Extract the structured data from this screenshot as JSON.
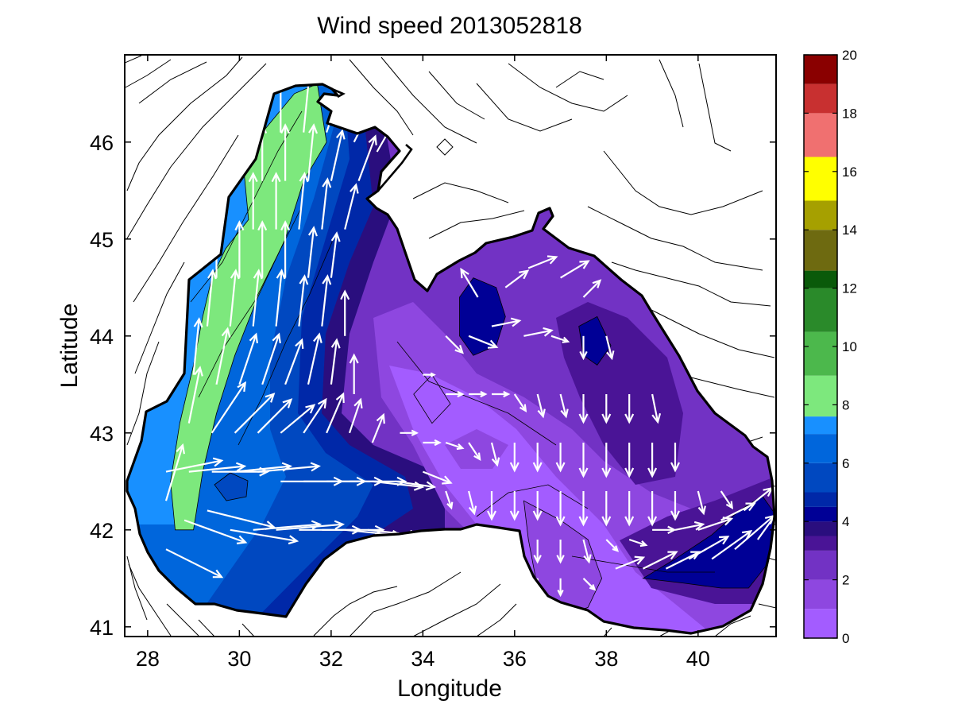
{
  "chart_data": {
    "type": "contourf-quiver-map",
    "title": "Wind speed 2013052818",
    "xlabel": "Longitude",
    "ylabel": "Latitude",
    "xlim": [
      27.5,
      41.7
    ],
    "ylim": [
      40.9,
      46.9
    ],
    "xticks": [
      "28",
      "30",
      "32",
      "34",
      "36",
      "38",
      "40"
    ],
    "yticks": [
      "41",
      "42",
      "43",
      "44",
      "45",
      "46"
    ],
    "grid": false,
    "colorbar": {
      "position": "right",
      "range": [
        0,
        20
      ],
      "ticks": [
        "0",
        "2",
        "4",
        "6",
        "8",
        "10",
        "12",
        "14",
        "16",
        "18",
        "20"
      ],
      "bands": [
        {
          "from": 0,
          "to": 1,
          "color": "#a35cff"
        },
        {
          "from": 1,
          "to": 2,
          "color": "#8e47e0"
        },
        {
          "from": 2,
          "to": 3,
          "color": "#7232c4"
        },
        {
          "from": 3,
          "to": 3.5,
          "color": "#4a1496"
        },
        {
          "from": 3.5,
          "to": 4,
          "color": "#2a0e7e"
        },
        {
          "from": 4,
          "to": 4.5,
          "color": "#000096"
        },
        {
          "from": 4.5,
          "to": 5,
          "color": "#0028a8"
        },
        {
          "from": 5,
          "to": 6,
          "color": "#0048c0"
        },
        {
          "from": 6,
          "to": 7,
          "color": "#0066dc"
        },
        {
          "from": 7,
          "to": 7.6,
          "color": "#1890ff"
        },
        {
          "from": 7.6,
          "to": 9,
          "color": "#7de87d"
        },
        {
          "from": 9,
          "to": 10.5,
          "color": "#4cb84c"
        },
        {
          "from": 10.5,
          "to": 12,
          "color": "#2a8a2a"
        },
        {
          "from": 12,
          "to": 12.6,
          "color": "#0a5a0a"
        },
        {
          "from": 12.6,
          "to": 14,
          "color": "#6e6a10"
        },
        {
          "from": 14,
          "to": 15,
          "color": "#a6a000"
        },
        {
          "from": 15,
          "to": 16.5,
          "color": "#ffff00"
        },
        {
          "from": 16.5,
          "to": 18,
          "color": "#f07070"
        },
        {
          "from": 18,
          "to": 19,
          "color": "#c83030"
        },
        {
          "from": 19,
          "to": 20,
          "color": "#8a0000"
        }
      ]
    },
    "speed_regions": [
      {
        "speed": 10.5,
        "lonlat": [
          [
            30.3,
            45.2
          ],
          [
            30.2,
            45.6
          ],
          [
            30.6,
            46.0
          ],
          [
            31.0,
            46.2
          ],
          [
            31.2,
            45.9
          ],
          [
            31.0,
            45.5
          ],
          [
            30.7,
            45.1
          ]
        ]
      },
      {
        "speed": 8.5,
        "lonlat": [
          [
            29.4,
            44.6
          ],
          [
            29.7,
            44.9
          ],
          [
            30.2,
            45.2
          ],
          [
            30.1,
            45.7
          ],
          [
            30.5,
            46.1
          ],
          [
            31.2,
            46.5
          ],
          [
            31.7,
            46.6
          ],
          [
            31.9,
            46.0
          ],
          [
            31.4,
            45.6
          ],
          [
            31.0,
            45.0
          ],
          [
            30.4,
            44.4
          ],
          [
            29.9,
            43.8
          ],
          [
            29.5,
            43.2
          ],
          [
            29.2,
            42.6
          ],
          [
            29.0,
            42.0
          ],
          [
            28.6,
            42.0
          ],
          [
            28.5,
            42.5
          ],
          [
            28.7,
            43.1
          ],
          [
            29.0,
            43.7
          ],
          [
            29.2,
            44.2
          ]
        ]
      },
      {
        "speed": 4.2,
        "lonlat": [
          [
            34.8,
            44.4
          ],
          [
            35.1,
            44.6
          ],
          [
            35.6,
            44.5
          ],
          [
            35.8,
            44.2
          ],
          [
            35.6,
            43.9
          ],
          [
            35.1,
            43.8
          ],
          [
            34.8,
            44.0
          ]
        ]
      },
      {
        "speed": 4.2,
        "lonlat": [
          [
            37.4,
            44.1
          ],
          [
            37.8,
            44.2
          ],
          [
            38.1,
            43.9
          ],
          [
            37.8,
            43.7
          ],
          [
            37.5,
            43.8
          ]
        ]
      },
      {
        "speed": 4.4,
        "lonlat": [
          [
            38.8,
            41.5
          ],
          [
            39.5,
            41.7
          ],
          [
            40.3,
            41.95
          ],
          [
            40.9,
            42.2
          ],
          [
            41.4,
            42.35
          ],
          [
            41.7,
            42.15
          ],
          [
            41.6,
            41.7
          ],
          [
            41.1,
            41.4
          ],
          [
            40.5,
            41.4
          ],
          [
            39.7,
            41.45
          ]
        ]
      },
      {
        "speed": 1.2,
        "lonlat": [
          [
            36.2,
            42.3
          ],
          [
            37.0,
            42.1
          ],
          [
            37.6,
            41.9
          ],
          [
            37.9,
            41.5
          ],
          [
            37.6,
            41.2
          ],
          [
            37.0,
            41.1
          ],
          [
            36.5,
            41.4
          ],
          [
            36.3,
            41.9
          ]
        ]
      },
      {
        "speed": 0.8,
        "lonlat": [
          [
            33.8,
            43.4
          ],
          [
            34.2,
            43.6
          ],
          [
            34.6,
            43.3
          ],
          [
            34.2,
            43.1
          ]
        ]
      }
    ],
    "wind_vectors_lon_lat_u_v": [
      [
        28.4,
        42.3,
        0.3,
        1.0
      ],
      [
        28.4,
        41.8,
        1.0,
        -0.5
      ],
      [
        28.8,
        42.1,
        1.1,
        -0.4
      ],
      [
        29.3,
        42.2,
        1.2,
        -0.3
      ],
      [
        29.8,
        42.0,
        1.2,
        -0.2
      ],
      [
        30.3,
        42.0,
        1.2,
        0.1
      ],
      [
        30.8,
        42.0,
        1.2,
        0.1
      ],
      [
        31.3,
        42.0,
        1.1,
        0.0
      ],
      [
        31.8,
        42.0,
        1.1,
        0.0
      ],
      [
        32.3,
        42.0,
        1.0,
        -0.1
      ],
      [
        32.8,
        42.0,
        0.9,
        -0.1
      ],
      [
        33.3,
        41.9,
        0.5,
        0.0
      ],
      [
        28.4,
        42.6,
        1.0,
        0.2
      ],
      [
        28.9,
        42.6,
        1.0,
        0.1
      ],
      [
        29.4,
        42.6,
        1.0,
        0.0
      ],
      [
        29.9,
        42.6,
        1.0,
        0.1
      ],
      [
        30.4,
        42.6,
        1.1,
        0.1
      ],
      [
        30.9,
        42.5,
        1.1,
        0.0
      ],
      [
        31.4,
        42.5,
        1.1,
        0.0
      ],
      [
        31.9,
        42.5,
        1.0,
        0.0
      ],
      [
        32.4,
        42.5,
        1.0,
        0.0
      ],
      [
        32.9,
        42.5,
        0.9,
        -0.1
      ],
      [
        33.4,
        42.5,
        0.7,
        -0.1
      ],
      [
        34.0,
        42.6,
        0.5,
        -0.2
      ],
      [
        28.9,
        43.1,
        0.2,
        1.0
      ],
      [
        29.4,
        43.0,
        0.6,
        0.9
      ],
      [
        29.9,
        43.0,
        0.7,
        0.7
      ],
      [
        30.4,
        43.0,
        0.6,
        0.6
      ],
      [
        30.9,
        43.0,
        0.6,
        0.5
      ],
      [
        31.4,
        43.0,
        0.4,
        0.6
      ],
      [
        31.9,
        43.0,
        0.3,
        0.7
      ],
      [
        32.4,
        43.0,
        0.2,
        0.6
      ],
      [
        32.9,
        42.9,
        0.2,
        0.5
      ],
      [
        29.0,
        43.6,
        0.1,
        1.0
      ],
      [
        29.5,
        43.5,
        0.2,
        1.0
      ],
      [
        30.0,
        43.5,
        0.3,
        0.9
      ],
      [
        30.5,
        43.5,
        0.3,
        0.9
      ],
      [
        31.0,
        43.5,
        0.3,
        0.8
      ],
      [
        31.5,
        43.5,
        0.2,
        0.9
      ],
      [
        32.0,
        43.5,
        0.1,
        0.8
      ],
      [
        32.5,
        43.4,
        0.0,
        0.7
      ],
      [
        29.3,
        44.1,
        0.1,
        1.0
      ],
      [
        29.8,
        44.1,
        0.1,
        1.0
      ],
      [
        30.3,
        44.1,
        0.1,
        1.0
      ],
      [
        30.8,
        44.1,
        0.1,
        1.0
      ],
      [
        31.3,
        44.1,
        0.1,
        0.9
      ],
      [
        31.8,
        44.1,
        0.1,
        0.9
      ],
      [
        32.3,
        44.0,
        0.0,
        0.8
      ],
      [
        29.5,
        44.6,
        0.0,
        1.0
      ],
      [
        30.0,
        44.6,
        0.0,
        1.0
      ],
      [
        30.5,
        44.6,
        0.0,
        1.0
      ],
      [
        31.0,
        44.6,
        0.0,
        1.0
      ],
      [
        31.5,
        44.6,
        0.1,
        0.9
      ],
      [
        32.0,
        44.6,
        0.1,
        0.8
      ],
      [
        30.3,
        45.1,
        0.0,
        1.0
      ],
      [
        30.8,
        45.1,
        0.0,
        1.0
      ],
      [
        31.3,
        45.1,
        0.1,
        1.0
      ],
      [
        31.8,
        45.1,
        0.1,
        0.9
      ],
      [
        32.3,
        45.1,
        0.2,
        0.8
      ],
      [
        30.5,
        45.6,
        0.0,
        1.0
      ],
      [
        31.0,
        45.6,
        0.0,
        1.0
      ],
      [
        31.5,
        45.6,
        0.1,
        1.0
      ],
      [
        32.0,
        45.6,
        0.2,
        0.9
      ],
      [
        32.6,
        45.6,
        0.3,
        0.8
      ],
      [
        30.9,
        46.1,
        0.0,
        1.0
      ],
      [
        31.4,
        46.1,
        0.1,
        1.0
      ],
      [
        31.9,
        46.1,
        0.3,
        0.9
      ],
      [
        32.5,
        46.0,
        0.4,
        0.8
      ],
      [
        33.0,
        45.9,
        0.4,
        0.7
      ],
      [
        35.2,
        44.4,
        -0.3,
        0.5
      ],
      [
        35.8,
        44.5,
        0.4,
        0.3
      ],
      [
        36.3,
        44.7,
        0.5,
        0.2
      ],
      [
        37.0,
        44.6,
        0.5,
        0.3
      ],
      [
        37.5,
        44.4,
        0.3,
        0.3
      ],
      [
        34.5,
        44.0,
        0.3,
        -0.3
      ],
      [
        35.0,
        44.0,
        0.5,
        -0.2
      ],
      [
        35.5,
        44.1,
        0.5,
        0.1
      ],
      [
        36.2,
        44.0,
        0.5,
        0.1
      ],
      [
        36.8,
        44.0,
        0.3,
        -0.1
      ],
      [
        37.5,
        44.0,
        0.0,
        -0.4
      ],
      [
        38.0,
        44.0,
        0.1,
        -0.4
      ],
      [
        34.0,
        43.6,
        0.2,
        0.0
      ],
      [
        34.5,
        43.4,
        0.3,
        0.0
      ],
      [
        35.0,
        43.4,
        0.3,
        0.0
      ],
      [
        35.5,
        43.4,
        0.3,
        0.0
      ],
      [
        36.0,
        43.4,
        0.2,
        -0.3
      ],
      [
        36.5,
        43.4,
        0.1,
        -0.4
      ],
      [
        37.0,
        43.4,
        0.1,
        -0.4
      ],
      [
        37.5,
        43.4,
        0.0,
        -0.5
      ],
      [
        38.0,
        43.4,
        0.0,
        -0.5
      ],
      [
        38.5,
        43.4,
        0.0,
        -0.5
      ],
      [
        39.0,
        43.4,
        0.1,
        -0.5
      ],
      [
        33.5,
        43.0,
        0.3,
        0.0
      ],
      [
        34.0,
        42.9,
        0.3,
        0.0
      ],
      [
        34.5,
        42.9,
        0.3,
        -0.1
      ],
      [
        35.0,
        42.9,
        0.2,
        -0.3
      ],
      [
        35.5,
        42.9,
        0.1,
        -0.4
      ],
      [
        36.0,
        42.9,
        0.0,
        -0.5
      ],
      [
        36.5,
        42.9,
        0.0,
        -0.5
      ],
      [
        37.0,
        42.9,
        0.0,
        -0.5
      ],
      [
        37.5,
        42.9,
        0.0,
        -0.6
      ],
      [
        38.0,
        42.9,
        0.0,
        -0.6
      ],
      [
        38.5,
        42.9,
        0.0,
        -0.6
      ],
      [
        39.0,
        42.9,
        0.0,
        -0.6
      ],
      [
        39.5,
        42.9,
        0.0,
        -0.5
      ],
      [
        34.5,
        42.4,
        0.1,
        -0.3
      ],
      [
        35.0,
        42.4,
        0.1,
        -0.4
      ],
      [
        35.5,
        42.4,
        0.0,
        -0.5
      ],
      [
        36.0,
        42.4,
        0.0,
        -0.5
      ],
      [
        36.5,
        42.4,
        0.0,
        -0.5
      ],
      [
        37.0,
        42.4,
        0.0,
        -0.6
      ],
      [
        37.5,
        42.4,
        0.0,
        -0.6
      ],
      [
        38.0,
        42.4,
        0.0,
        -0.6
      ],
      [
        38.5,
        42.4,
        0.0,
        -0.6
      ],
      [
        39.0,
        42.4,
        0.0,
        -0.6
      ],
      [
        39.5,
        42.4,
        0.0,
        -0.5
      ],
      [
        40.0,
        42.4,
        0.1,
        -0.4
      ],
      [
        40.5,
        42.4,
        0.2,
        -0.3
      ],
      [
        35.5,
        41.9,
        0.0,
        -0.4
      ],
      [
        36.0,
        41.9,
        0.0,
        -0.4
      ],
      [
        36.5,
        41.9,
        0.0,
        -0.4
      ],
      [
        37.0,
        41.9,
        0.0,
        -0.4
      ],
      [
        37.5,
        41.9,
        0.1,
        -0.4
      ],
      [
        38.0,
        41.9,
        0.2,
        -0.2
      ],
      [
        38.5,
        41.9,
        0.3,
        -0.1
      ],
      [
        39.0,
        42.0,
        0.4,
        0.0
      ],
      [
        39.5,
        42.0,
        0.5,
        0.1
      ],
      [
        40.0,
        42.0,
        0.6,
        0.2
      ],
      [
        40.5,
        42.1,
        0.6,
        0.3
      ],
      [
        41.0,
        42.2,
        0.5,
        0.4
      ],
      [
        36.5,
        41.5,
        0.0,
        -0.3
      ],
      [
        37.0,
        41.5,
        0.0,
        -0.3
      ],
      [
        37.5,
        41.5,
        0.2,
        -0.2
      ],
      [
        38.2,
        41.6,
        0.5,
        0.2
      ],
      [
        38.8,
        41.6,
        0.6,
        0.3
      ],
      [
        39.3,
        41.6,
        0.6,
        0.3
      ],
      [
        39.8,
        41.7,
        0.7,
        0.4
      ],
      [
        40.3,
        41.7,
        0.7,
        0.5
      ],
      [
        40.8,
        41.8,
        0.7,
        0.6
      ],
      [
        41.3,
        41.9,
        0.5,
        0.7
      ]
    ]
  }
}
